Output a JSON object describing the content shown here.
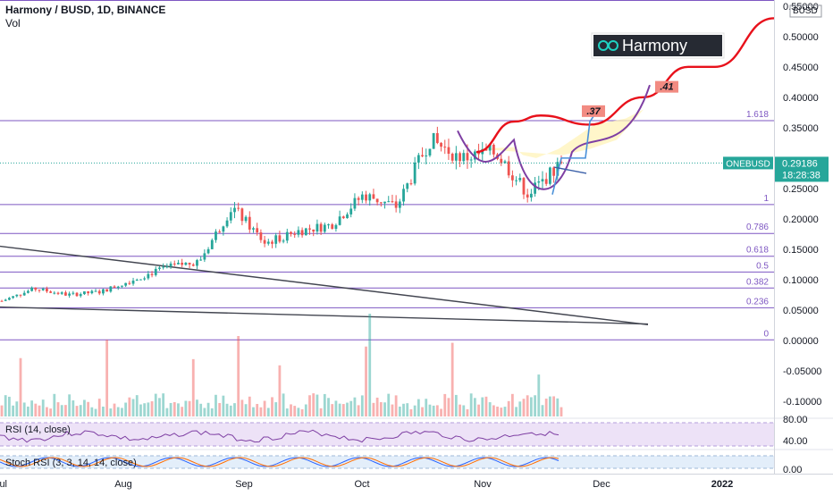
{
  "header": {
    "symbol_line": "Harmony / BUSD, 1D, BINANCE",
    "vol_label": "Vol"
  },
  "logo": {
    "text": "Harmony"
  },
  "currency_label": "BUSD",
  "price_tag": {
    "symbol": "ONEBUSD",
    "price": "0.29186",
    "countdown": "18:28:38"
  },
  "fib": [
    {
      "level": "1.618",
      "price": 0.3615
    },
    {
      "level": "1",
      "price": 0.2235
    },
    {
      "level": "0.786",
      "price": 0.176
    },
    {
      "level": "0.618",
      "price": 0.1385
    },
    {
      "level": "0.5",
      "price": 0.1125
    },
    {
      "level": "0.382",
      "price": 0.0863
    },
    {
      "level": "0.236",
      "price": 0.0538
    },
    {
      "level": "0",
      "price": 0.001
    }
  ],
  "annotations": [
    ".37",
    ".41"
  ],
  "rsi_label": "RSI (14, close)",
  "rsi_ticks": [
    "80.00",
    "40.00"
  ],
  "stoch_label": "Stoch RSI (3, 3, 14, 14, close)",
  "stoch_ticks": [
    "0.00"
  ],
  "chart_data": {
    "type": "candlestick",
    "title": "Harmony / BUSD, 1D, BINANCE",
    "y_axis": {
      "unit": "BUSD",
      "range": [
        -0.125,
        0.56
      ],
      "ticks": [
        "0.55000",
        "0.50000",
        "0.45000",
        "0.40000",
        "0.35000",
        "0.30000",
        "0.25000",
        "0.20000",
        "0.15000",
        "0.10000",
        "0.05000",
        "0.00000",
        "-0.05000",
        "-0.10000"
      ],
      "tick_values": [
        0.55,
        0.5,
        0.45,
        0.4,
        0.35,
        0.3,
        0.25,
        0.2,
        0.15,
        0.1,
        0.05,
        0.0,
        -0.05,
        -0.1
      ]
    },
    "x_axis": {
      "labels": [
        "Jul",
        "Aug",
        "Sep",
        "Oct",
        "Nov",
        "Dec",
        "2022"
      ]
    },
    "last_price": 0.29186,
    "approx_close_path": [
      {
        "t": "early Jul",
        "close": 0.065
      },
      {
        "t": "mid Jul",
        "close": 0.085
      },
      {
        "t": "late Jul",
        "close": 0.075
      },
      {
        "t": "Aug",
        "close": 0.08
      },
      {
        "t": "mid Aug",
        "close": 0.1
      },
      {
        "t": "late Aug",
        "close": 0.12
      },
      {
        "t": "early Sep",
        "close": 0.13
      },
      {
        "t": "Sep",
        "close": 0.22
      },
      {
        "t": "mid Sep",
        "close": 0.16
      },
      {
        "t": "late Sep",
        "close": 0.18
      },
      {
        "t": "early Oct",
        "close": 0.19
      },
      {
        "t": "Oct",
        "close": 0.24
      },
      {
        "t": "mid Oct",
        "close": 0.22
      },
      {
        "t": "late Oct",
        "close": 0.33
      },
      {
        "t": "early Nov",
        "close": 0.3
      },
      {
        "t": "Nov",
        "close": 0.31
      },
      {
        "t": "mid Nov",
        "close": 0.24
      },
      {
        "t": "late Nov",
        "close": 0.29186
      }
    ],
    "projection_path": [
      {
        "t": "late Oct",
        "price": 0.31
      },
      {
        "t": "early Nov",
        "price": 0.36
      },
      {
        "t": "mid Nov",
        "price": 0.37
      },
      {
        "t": "late Nov",
        "price": 0.355
      },
      {
        "t": "Dec",
        "price": 0.4
      },
      {
        "t": "mid Dec",
        "price": 0.45
      },
      {
        "t": "late Dec",
        "price": 0.45
      },
      {
        "t": "2022",
        "price": 0.53
      }
    ]
  },
  "colors": {
    "up": "#26a69a",
    "down": "#ef5350",
    "fib": "#7e57c2",
    "projection": "#e8111b",
    "cup": "#7e3fa3",
    "arrow": "#4a90d9",
    "price_tag": "#26a69a",
    "annotation_bg": "#f28b82"
  }
}
